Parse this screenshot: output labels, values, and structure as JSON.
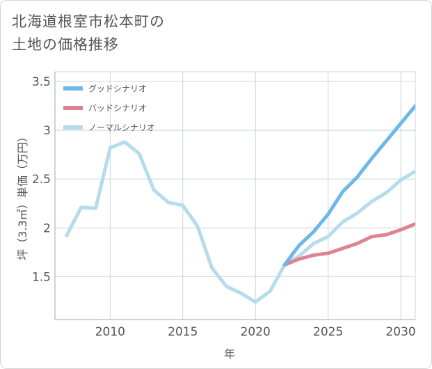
{
  "title_lines": [
    "北海道根室市松本町の",
    "土地の価格推移"
  ],
  "chart_data": {
    "type": "line",
    "xlabel": "年",
    "ylabel": "坪（3.3㎡）単価（万円）",
    "xlim": [
      2006.2,
      2031
    ],
    "ylim": [
      1.06,
      3.6
    ],
    "x_ticks": [
      2010,
      2015,
      2020,
      2025,
      2030
    ],
    "x_tick_labels": [
      "2010",
      "2015",
      "2020",
      "2025",
      "2030"
    ],
    "y_ticks": [
      1.5,
      2,
      2.5,
      3,
      3.5
    ],
    "y_tick_labels": [
      "1.5",
      "2",
      "2.5",
      "3",
      "3.5"
    ],
    "grid": true,
    "legend_position": "top-left",
    "series": [
      {
        "name": "グッドシナリオ",
        "color": "#6cb8e8",
        "x": [
          2022,
          2023,
          2024,
          2025,
          2026,
          2027,
          2028,
          2029,
          2030,
          2031
        ],
        "y": [
          1.62,
          1.82,
          1.96,
          2.14,
          2.37,
          2.52,
          2.71,
          2.89,
          3.07,
          3.25
        ]
      },
      {
        "name": "バッドシナリオ",
        "color": "#dd8490",
        "x": [
          2022,
          2023,
          2024,
          2025,
          2026,
          2027,
          2028,
          2029,
          2030,
          2031
        ],
        "y": [
          1.62,
          1.68,
          1.72,
          1.74,
          1.79,
          1.84,
          1.91,
          1.93,
          1.98,
          2.04
        ]
      },
      {
        "name": "ノーマルシナリオ",
        "color": "#b6dcec",
        "x": [
          2007,
          2008,
          2009,
          2010,
          2011,
          2012,
          2013,
          2014,
          2015,
          2016,
          2017,
          2018,
          2019,
          2020,
          2021,
          2022,
          2023,
          2024,
          2025,
          2026,
          2027,
          2028,
          2029,
          2030,
          2031
        ],
        "y": [
          1.92,
          2.21,
          2.2,
          2.82,
          2.88,
          2.76,
          2.39,
          2.26,
          2.23,
          2.02,
          1.59,
          1.4,
          1.33,
          1.24,
          1.35,
          1.62,
          1.71,
          1.84,
          1.91,
          2.06,
          2.15,
          2.27,
          2.36,
          2.49,
          2.58
        ]
      }
    ]
  }
}
